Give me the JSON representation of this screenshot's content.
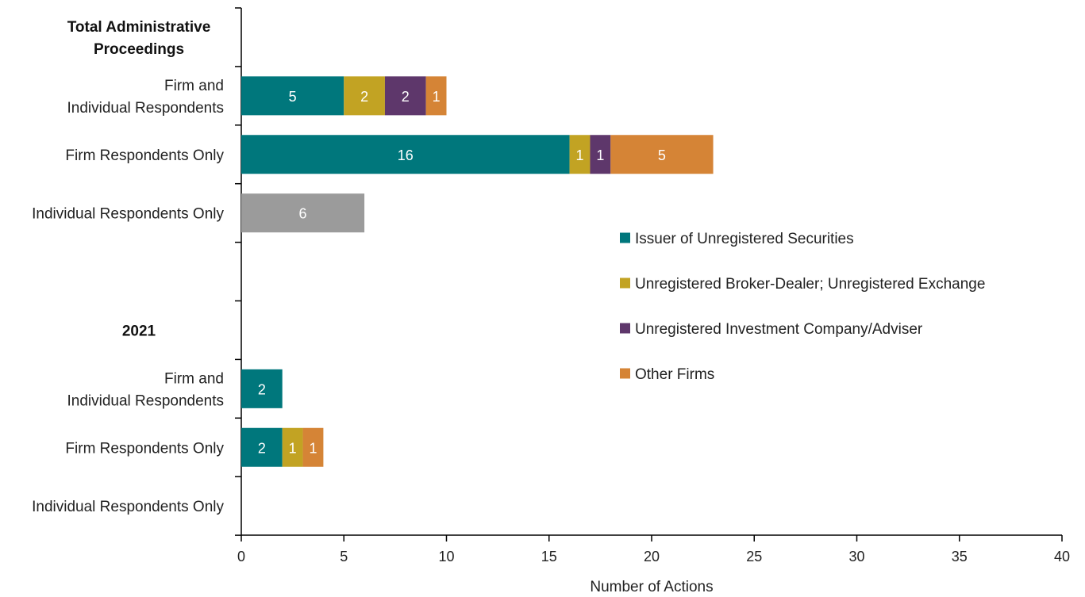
{
  "chart_data": {
    "type": "bar",
    "orientation": "horizontal",
    "stacked": true,
    "xlabel": "Number of Actions",
    "xlim": [
      0,
      40
    ],
    "xticks": [
      0,
      5,
      10,
      15,
      20,
      25,
      30,
      35,
      40
    ],
    "grid": false,
    "legend_position": "right",
    "colors": {
      "Issuer of Unregistered Securities": "#00777c",
      "Unregistered Broker-Dealer; Unregistered Exchange": "#c2a323",
      "Unregistered Investment Company/Adviser": "#5e376b",
      "Other Firms": "#d58436",
      "Individual": "#9b9b9b"
    },
    "series": [
      {
        "name": "Issuer of Unregistered Securities"
      },
      {
        "name": "Unregistered Broker-Dealer; Unregistered Exchange"
      },
      {
        "name": "Unregistered Investment Company/Adviser"
      },
      {
        "name": "Other Firms"
      }
    ],
    "groups": [
      {
        "label": "Total Administrative Proceedings",
        "label_lines": [
          "Total Administrative",
          "Proceedings"
        ],
        "rows": [
          {
            "label": "Firm and Individual Respondents",
            "label_lines": [
              "Firm and",
              "Individual Respondents"
            ],
            "segments": [
              {
                "series": "Issuer of Unregistered Securities",
                "value": 5
              },
              {
                "series": "Unregistered Broker-Dealer; Unregistered Exchange",
                "value": 2
              },
              {
                "series": "Unregistered Investment Company/Adviser",
                "value": 2
              },
              {
                "series": "Other Firms",
                "value": 1
              }
            ]
          },
          {
            "label": "Firm Respondents Only",
            "label_lines": [
              "Firm Respondents Only"
            ],
            "segments": [
              {
                "series": "Issuer of Unregistered Securities",
                "value": 16
              },
              {
                "series": "Unregistered Broker-Dealer; Unregistered Exchange",
                "value": 1
              },
              {
                "series": "Unregistered Investment Company/Adviser",
                "value": 1
              },
              {
                "series": "Other Firms",
                "value": 5
              }
            ]
          },
          {
            "label": "Individual Respondents Only",
            "label_lines": [
              "Individual Respondents Only"
            ],
            "segments": [
              {
                "series": "Individual",
                "value": 6
              }
            ]
          }
        ]
      },
      {
        "label": "2021",
        "label_lines": [
          "2021"
        ],
        "rows": [
          {
            "label": "Firm and Individual Respondents",
            "label_lines": [
              "Firm and",
              "Individual Respondents"
            ],
            "segments": [
              {
                "series": "Issuer of Unregistered Securities",
                "value": 2
              }
            ]
          },
          {
            "label": "Firm Respondents Only",
            "label_lines": [
              "Firm Respondents Only"
            ],
            "segments": [
              {
                "series": "Issuer of Unregistered Securities",
                "value": 2
              },
              {
                "series": "Unregistered Broker-Dealer; Unregistered Exchange",
                "value": 1
              },
              {
                "series": "Other Firms",
                "value": 1
              }
            ]
          },
          {
            "label": "Individual Respondents Only",
            "label_lines": [
              "Individual Respondents Only"
            ],
            "segments": []
          }
        ]
      }
    ]
  }
}
